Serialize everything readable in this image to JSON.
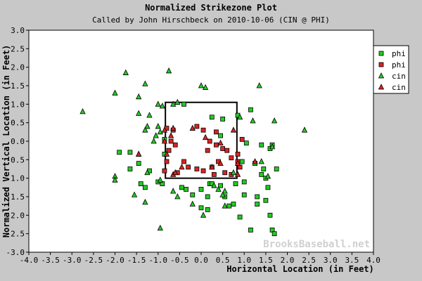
{
  "chart_data": {
    "type": "scatter",
    "title": "Normalized Strikezone Plot",
    "subtitle": "Called by John Hirschbeck on 2010-10-06 (CIN @ PHI)",
    "xlabel": "Horizontal Location (in Feet)",
    "ylabel": "Normalized Vertical Location (in Feet)",
    "xlim": [
      -4.0,
      4.0
    ],
    "ylim": [
      -3.0,
      3.0
    ],
    "x_ticks": [
      "-4.0",
      "-3.5",
      "-3.0",
      "-2.5",
      "-2.0",
      "-1.5",
      "-1.0",
      "-0.5",
      "0.0",
      "0.5",
      "1.0",
      "1.5",
      "2.0",
      "2.5",
      "3.0",
      "3.5",
      "4.0"
    ],
    "y_ticks": [
      "3.0",
      "2.5",
      "2.0",
      "1.5",
      "1.0",
      "0.5",
      "0.0",
      "-0.5",
      "-1.0",
      "-1.5",
      "-2.0",
      "-2.5",
      "-3.0"
    ],
    "grid": false,
    "legend_position": "top-right",
    "strike_zone": {
      "x": [
        -0.83,
        0.83
      ],
      "y": [
        -1.0,
        1.05
      ]
    },
    "watermark": "BrooksBaseball.net",
    "series": [
      {
        "name": "phi",
        "marker": "square",
        "color": "#22cc22",
        "points": [
          [
            -0.4,
            1.0
          ],
          [
            0.25,
            0.65
          ],
          [
            0.5,
            0.6
          ],
          [
            0.85,
            0.7
          ],
          [
            1.15,
            0.85
          ],
          [
            -0.85,
            0.05
          ],
          [
            -0.85,
            -0.35
          ],
          [
            0.45,
            0.15
          ],
          [
            1.05,
            -0.05
          ],
          [
            1.4,
            -0.1
          ],
          [
            1.65,
            -0.1
          ],
          [
            0.95,
            -0.55
          ],
          [
            1.25,
            -0.6
          ],
          [
            1.45,
            -0.75
          ],
          [
            1.75,
            -0.75
          ],
          [
            -1.9,
            -0.3
          ],
          [
            -1.65,
            -0.3
          ],
          [
            -1.45,
            -0.6
          ],
          [
            -1.65,
            -0.75
          ],
          [
            -1.2,
            -0.8
          ],
          [
            -1.0,
            -1.1
          ],
          [
            -0.9,
            -1.15
          ],
          [
            -1.4,
            -1.15
          ],
          [
            -1.3,
            -1.25
          ],
          [
            -0.45,
            -1.25
          ],
          [
            -0.35,
            -1.3
          ],
          [
            -0.2,
            -1.45
          ],
          [
            0.0,
            -1.3
          ],
          [
            0.2,
            -1.15
          ],
          [
            0.25,
            -1.15
          ],
          [
            0.45,
            -1.2
          ],
          [
            0.8,
            -1.15
          ],
          [
            1.0,
            -1.1
          ],
          [
            1.5,
            -1.0
          ],
          [
            1.55,
            -1.25
          ],
          [
            0.55,
            -1.5
          ],
          [
            0.15,
            -1.5
          ],
          [
            0.0,
            -1.8
          ],
          [
            0.15,
            -1.85
          ],
          [
            0.65,
            -1.75
          ],
          [
            0.75,
            -1.7
          ],
          [
            1.0,
            -1.45
          ],
          [
            1.3,
            -1.5
          ],
          [
            1.3,
            -1.7
          ],
          [
            1.5,
            -1.6
          ],
          [
            1.6,
            -2.0
          ],
          [
            1.65,
            -2.4
          ],
          [
            1.7,
            -2.5
          ],
          [
            0.9,
            -2.05
          ],
          [
            1.15,
            -2.4
          ],
          [
            1.4,
            -0.9
          ],
          [
            1.6,
            -0.2
          ]
        ]
      },
      {
        "name": "phi",
        "marker": "square",
        "color": "#dd2222",
        "points": [
          [
            -0.8,
            0.35
          ],
          [
            -0.65,
            0.3
          ],
          [
            -0.7,
            0.0
          ],
          [
            -0.75,
            -0.25
          ],
          [
            -0.8,
            -0.55
          ],
          [
            -0.85,
            -0.8
          ],
          [
            -0.6,
            -0.1
          ],
          [
            -0.4,
            -0.55
          ],
          [
            -0.1,
            0.4
          ],
          [
            0.05,
            0.3
          ],
          [
            0.2,
            0.0
          ],
          [
            0.35,
            -0.1
          ],
          [
            0.15,
            -0.25
          ],
          [
            0.5,
            -0.2
          ],
          [
            0.6,
            -0.25
          ],
          [
            0.7,
            -0.45
          ],
          [
            0.85,
            -0.55
          ],
          [
            0.9,
            -0.7
          ],
          [
            0.95,
            0.05
          ],
          [
            0.4,
            -0.55
          ],
          [
            0.55,
            -0.85
          ],
          [
            0.25,
            -0.7
          ],
          [
            0.05,
            -0.8
          ],
          [
            -0.1,
            -0.75
          ],
          [
            -0.3,
            -0.7
          ],
          [
            -0.55,
            -0.85
          ],
          [
            0.7,
            -0.9
          ],
          [
            0.35,
            0.25
          ],
          [
            0.85,
            -0.35
          ],
          [
            0.3,
            -0.9
          ]
        ]
      },
      {
        "name": "cin",
        "marker": "triangle",
        "color": "#22cc22",
        "points": [
          [
            -1.75,
            1.85
          ],
          [
            -0.75,
            1.9
          ],
          [
            -2.0,
            1.3
          ],
          [
            -1.45,
            1.2
          ],
          [
            -1.3,
            1.55
          ],
          [
            -0.55,
            1.05
          ],
          [
            -0.65,
            1.0
          ],
          [
            0.0,
            1.5
          ],
          [
            0.1,
            1.45
          ],
          [
            1.35,
            1.5
          ],
          [
            -2.75,
            0.8
          ],
          [
            -1.45,
            0.75
          ],
          [
            -1.2,
            0.7
          ],
          [
            -1.0,
            1.0
          ],
          [
            -0.9,
            0.95
          ],
          [
            -1.25,
            0.4
          ],
          [
            -1.3,
            0.3
          ],
          [
            -1.0,
            0.4
          ],
          [
            -1.05,
            0.15
          ],
          [
            -0.95,
            0.25
          ],
          [
            -1.1,
            0.0
          ],
          [
            -1.45,
            -0.35
          ],
          [
            -2.0,
            -0.95
          ],
          [
            -2.0,
            -1.05
          ],
          [
            -1.25,
            -0.85
          ],
          [
            -1.55,
            -1.45
          ],
          [
            -1.3,
            -1.65
          ],
          [
            -0.95,
            -1.05
          ],
          [
            -0.65,
            -1.35
          ],
          [
            0.9,
            0.65
          ],
          [
            1.7,
            0.55
          ],
          [
            2.4,
            0.3
          ],
          [
            1.2,
            0.55
          ],
          [
            1.65,
            -0.15
          ],
          [
            1.4,
            -0.55
          ],
          [
            1.55,
            -0.95
          ],
          [
            0.55,
            -1.35
          ],
          [
            0.05,
            -2.0
          ],
          [
            -0.95,
            -2.35
          ],
          [
            -0.2,
            -1.7
          ],
          [
            0.55,
            -1.75
          ],
          [
            0.5,
            -1.45
          ],
          [
            0.4,
            -1.3
          ],
          [
            0.3,
            -1.2
          ],
          [
            -0.55,
            -1.5
          ],
          [
            0.75,
            -0.85
          ]
        ]
      },
      {
        "name": "cin",
        "marker": "triangle",
        "color": "#dd2222",
        "points": [
          [
            -0.85,
            0.3
          ],
          [
            -0.65,
            0.35
          ],
          [
            -0.2,
            0.35
          ],
          [
            -0.7,
            0.15
          ],
          [
            -0.85,
            0.0
          ],
          [
            -0.8,
            -0.35
          ],
          [
            -0.45,
            -0.7
          ],
          [
            0.25,
            -0.7
          ],
          [
            0.45,
            -0.6
          ],
          [
            -0.65,
            -0.9
          ],
          [
            0.85,
            -0.6
          ],
          [
            0.85,
            -0.9
          ],
          [
            -1.45,
            -0.35
          ],
          [
            0.75,
            0.3
          ],
          [
            1.25,
            -0.55
          ],
          [
            0.45,
            -0.05
          ],
          [
            -0.6,
            -0.85
          ],
          [
            0.1,
            0.1
          ]
        ]
      }
    ]
  }
}
